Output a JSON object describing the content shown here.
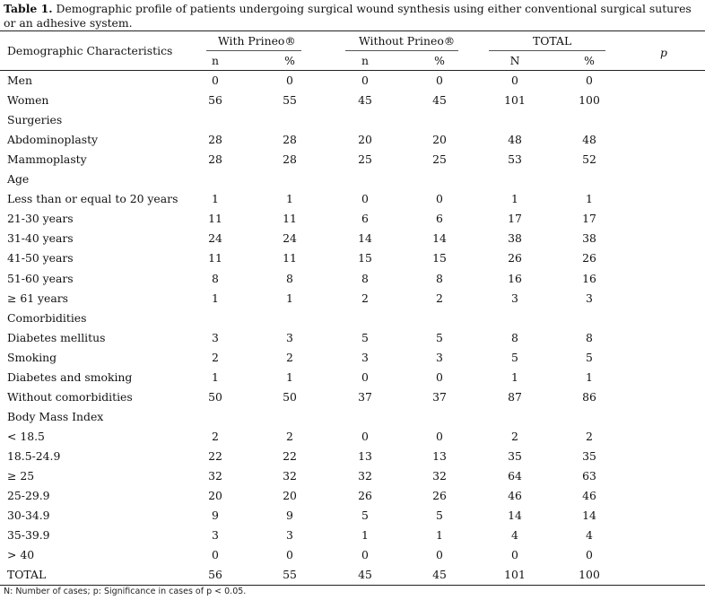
{
  "caption": {
    "label": "Table 1.",
    "text": " Demographic profile of patients undergoing surgical wound synthesis using either conventional surgical sutures or an adhesive system."
  },
  "header": {
    "demographic": "Demographic Characteristics",
    "with": "With Prineo®",
    "without": "Without Prineo®",
    "total": "TOTAL",
    "p": "p",
    "sub": [
      "n",
      "%",
      "n",
      "%",
      "N",
      "%"
    ]
  },
  "rows": [
    {
      "label": "Men",
      "values": [
        "0",
        "0",
        "0",
        "0",
        "0",
        "0"
      ]
    },
    {
      "label": "Women",
      "values": [
        "56",
        "55",
        "45",
        "45",
        "101",
        "100"
      ]
    },
    {
      "label": "Surgeries",
      "values": []
    },
    {
      "label": "Abdominoplasty",
      "values": [
        "28",
        "28",
        "20",
        "20",
        "48",
        "48"
      ]
    },
    {
      "label": "Mammoplasty",
      "values": [
        "28",
        "28",
        "25",
        "25",
        "53",
        "52"
      ]
    },
    {
      "label": "Age",
      "values": []
    },
    {
      "label": "Less than or equal to 20 years",
      "values": [
        "1",
        "1",
        "0",
        "0",
        "1",
        "1"
      ]
    },
    {
      "label": "21-30 years",
      "values": [
        "11",
        "11",
        "6",
        "6",
        "17",
        "17"
      ]
    },
    {
      "label": "31-40 years",
      "values": [
        "24",
        "24",
        "14",
        "14",
        "38",
        "38"
      ]
    },
    {
      "label": "41-50 years",
      "values": [
        "11",
        "11",
        "15",
        "15",
        "26",
        "26"
      ]
    },
    {
      "label": "51-60 years",
      "values": [
        "8",
        "8",
        "8",
        "8",
        "16",
        "16"
      ]
    },
    {
      "label": "≥ 61 years",
      "values": [
        "1",
        "1",
        "2",
        "2",
        "3",
        "3"
      ]
    },
    {
      "label": "Comorbidities",
      "values": []
    },
    {
      "label": "Diabetes mellitus",
      "values": [
        "3",
        "3",
        "5",
        "5",
        "8",
        "8"
      ]
    },
    {
      "label": "Smoking",
      "values": [
        "2",
        "2",
        "3",
        "3",
        "5",
        "5"
      ]
    },
    {
      "label": "Diabetes and smoking",
      "values": [
        "1",
        "1",
        "0",
        "0",
        "1",
        "1"
      ]
    },
    {
      "label": "Without comorbidities",
      "values": [
        "50",
        "50",
        "37",
        "37",
        "87",
        "86"
      ]
    },
    {
      "label": "Body Mass Index",
      "values": []
    },
    {
      "label": "< 18.5",
      "values": [
        "2",
        "2",
        "0",
        "0",
        "2",
        "2"
      ]
    },
    {
      "label": "18.5-24.9",
      "values": [
        "22",
        "22",
        "13",
        "13",
        "35",
        "35"
      ]
    },
    {
      "label": "≥ 25",
      "values": [
        "32",
        "32",
        "32",
        "32",
        "64",
        "63"
      ]
    },
    {
      "label": "25-29.9",
      "values": [
        "20",
        "20",
        "26",
        "26",
        "46",
        "46"
      ]
    },
    {
      "label": "30-34.9",
      "values": [
        "9",
        "9",
        "5",
        "5",
        "14",
        "14"
      ]
    },
    {
      "label": "35-39.9",
      "values": [
        "3",
        "3",
        "1",
        "1",
        "4",
        "4"
      ]
    },
    {
      "label": "> 40",
      "values": [
        "0",
        "0",
        "0",
        "0",
        "0",
        "0"
      ]
    },
    {
      "label": "TOTAL",
      "values": [
        "56",
        "55",
        "45",
        "45",
        "101",
        "100"
      ]
    }
  ],
  "footnote": "N: Number of cases; p: Significance in cases of p < 0.05."
}
